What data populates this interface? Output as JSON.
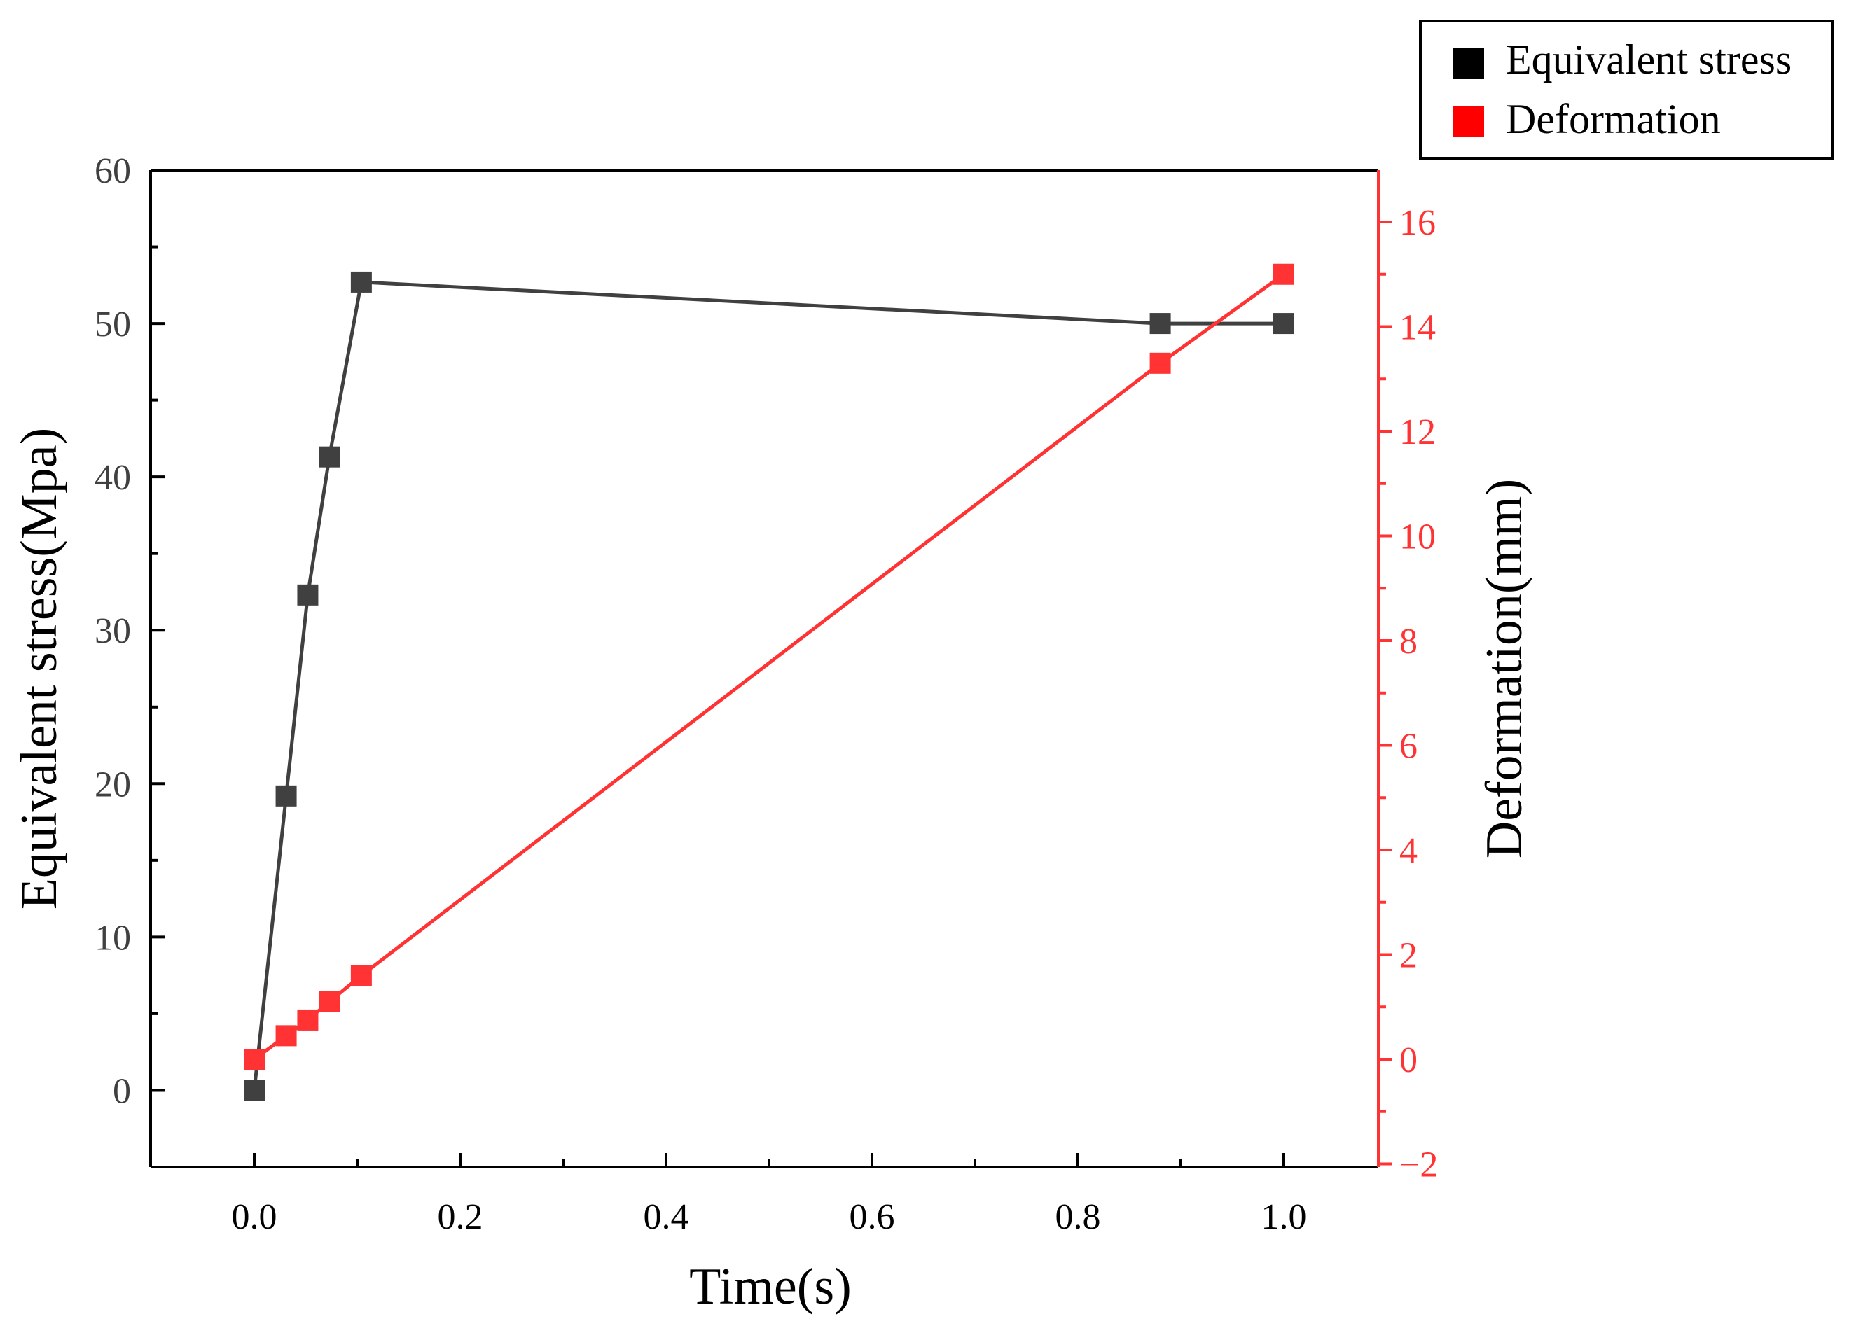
{
  "chart_data": {
    "type": "line",
    "title": "",
    "xlabel": "Time(s)",
    "x_ticks": [
      "0.0",
      "0.2",
      "0.4",
      "0.6",
      "0.8",
      "1.0"
    ],
    "xlim": [
      -0.1,
      1.085
    ],
    "left_axis": {
      "label": "Equivalent stress(Mpa)",
      "ylim": [
        -5,
        60
      ],
      "ticks": [
        "0",
        "10",
        "20",
        "30",
        "40",
        "50",
        "60"
      ],
      "color": "#404040"
    },
    "right_axis": {
      "label": "Deformation(mm)",
      "ylim": [
        -2,
        17
      ],
      "ticks": [
        "−2",
        "0",
        "2",
        "4",
        "6",
        "8",
        "10",
        "12",
        "14",
        "16"
      ],
      "color": "#ff3333"
    },
    "series": [
      {
        "name": "Equivalent stress",
        "axis": "left",
        "color": "#404040",
        "x": [
          0,
          0.031,
          0.052,
          0.073,
          0.104,
          0.88,
          1.0
        ],
        "values": [
          0,
          19.2,
          32.3,
          41.3,
          52.7,
          50.0,
          50.0
        ]
      },
      {
        "name": "Deformation",
        "axis": "right",
        "color": "#ff3333",
        "x": [
          0,
          0.031,
          0.052,
          0.073,
          0.104,
          0.88,
          1.0
        ],
        "values": [
          0,
          0.45,
          0.75,
          1.1,
          1.6,
          13.3,
          15.0
        ]
      }
    ],
    "legend": {
      "placement": "top-right",
      "entries": [
        "Equivalent stress",
        "Deformation"
      ],
      "colors": [
        "#000000",
        "#ff0000"
      ]
    },
    "grid": false
  }
}
